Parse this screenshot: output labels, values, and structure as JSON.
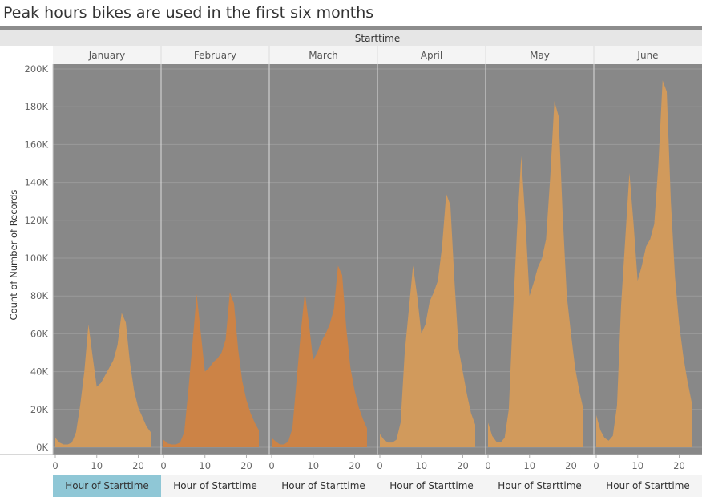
{
  "title": "Peak hours  bikes are used in the first six months",
  "column_header": "Starttime",
  "colors": {
    "plot_bg": "#888888",
    "area_light": "#d19a5c",
    "area_dark": "#cc8346",
    "footer_highlight": "#8fc7d6",
    "grid": "#9a9a9a"
  },
  "chart_data": {
    "type": "area",
    "ylabel": "Count of Number of Records",
    "xlabel": "Hour of Starttime",
    "ylim": [
      0,
      200000
    ],
    "y_ticks": [
      {
        "value": 0,
        "label": "0K"
      },
      {
        "value": 20000,
        "label": "20K"
      },
      {
        "value": 40000,
        "label": "40K"
      },
      {
        "value": 60000,
        "label": "60K"
      },
      {
        "value": 80000,
        "label": "80K"
      },
      {
        "value": 100000,
        "label": "100K"
      },
      {
        "value": 120000,
        "label": "120K"
      },
      {
        "value": 140000,
        "label": "140K"
      },
      {
        "value": 160000,
        "label": "160K"
      },
      {
        "value": 180000,
        "label": "180K"
      },
      {
        "value": 200000,
        "label": "200K"
      }
    ],
    "x_ticks": [
      {
        "value": 0,
        "label": "0"
      },
      {
        "value": 10,
        "label": "10"
      },
      {
        "value": 20,
        "label": "20"
      }
    ],
    "xlim": [
      0,
      23
    ],
    "grid": true,
    "highlighted_panel": 0,
    "panels": [
      {
        "month": "January",
        "shade": "light",
        "x": [
          0,
          1,
          2,
          3,
          4,
          5,
          6,
          7,
          8,
          9,
          10,
          11,
          12,
          13,
          14,
          15,
          16,
          17,
          18,
          19,
          20,
          21,
          22,
          23
        ],
        "values": [
          5000,
          2500,
          1500,
          1500,
          2500,
          8000,
          22000,
          40000,
          65000,
          48000,
          32000,
          34000,
          38000,
          42000,
          46000,
          54000,
          71000,
          66000,
          45000,
          30000,
          21000,
          16000,
          11000,
          8000
        ]
      },
      {
        "month": "February",
        "shade": "dark",
        "x": [
          0,
          1,
          2,
          3,
          4,
          5,
          6,
          7,
          8,
          9,
          10,
          11,
          12,
          13,
          14,
          15,
          16,
          17,
          18,
          19,
          20,
          21,
          22,
          23
        ],
        "values": [
          4000,
          2000,
          1500,
          1500,
          2500,
          8000,
          30000,
          55000,
          81000,
          60000,
          40000,
          42000,
          45000,
          47000,
          50000,
          57000,
          82000,
          76000,
          52000,
          35000,
          25000,
          18000,
          13000,
          9000
        ]
      },
      {
        "month": "March",
        "shade": "dark",
        "x": [
          0,
          1,
          2,
          3,
          4,
          5,
          6,
          7,
          8,
          9,
          10,
          11,
          12,
          13,
          14,
          15,
          16,
          17,
          18,
          19,
          20,
          21,
          22,
          23
        ],
        "values": [
          5000,
          3000,
          1500,
          1500,
          3000,
          10000,
          35000,
          60000,
          82000,
          65000,
          46000,
          50000,
          56000,
          60000,
          65000,
          73000,
          96000,
          91000,
          63000,
          42000,
          30000,
          21000,
          15000,
          10000
        ]
      },
      {
        "month": "April",
        "shade": "light",
        "x": [
          0,
          1,
          2,
          3,
          4,
          5,
          6,
          7,
          8,
          9,
          10,
          11,
          12,
          13,
          14,
          15,
          16,
          17,
          18,
          19,
          20,
          21,
          22,
          23
        ],
        "values": [
          7000,
          4000,
          2500,
          2500,
          4000,
          13000,
          50000,
          73000,
          96000,
          80000,
          60000,
          65000,
          77000,
          82000,
          88000,
          106000,
          134000,
          128000,
          88000,
          52000,
          40000,
          28000,
          18000,
          12000
        ]
      },
      {
        "month": "May",
        "shade": "light",
        "x": [
          0,
          1,
          2,
          3,
          4,
          5,
          6,
          7,
          8,
          9,
          10,
          11,
          12,
          13,
          14,
          15,
          16,
          17,
          18,
          19,
          20,
          21,
          22,
          23
        ],
        "values": [
          13000,
          6000,
          3000,
          2500,
          5000,
          20000,
          70000,
          115000,
          154000,
          120000,
          80000,
          87000,
          95000,
          100000,
          110000,
          143000,
          183000,
          175000,
          123000,
          80000,
          60000,
          42000,
          30000,
          20000
        ]
      },
      {
        "month": "June",
        "shade": "light",
        "x": [
          0,
          1,
          2,
          3,
          4,
          5,
          6,
          7,
          8,
          9,
          10,
          11,
          12,
          13,
          14,
          15,
          16,
          17,
          18,
          19,
          20,
          21,
          22,
          23
        ],
        "values": [
          17000,
          9000,
          5000,
          3500,
          6000,
          22000,
          75000,
          110000,
          145000,
          118000,
          88000,
          96000,
          106000,
          110000,
          118000,
          150000,
          194000,
          188000,
          130000,
          90000,
          65000,
          48000,
          35000,
          24000
        ]
      }
    ]
  }
}
